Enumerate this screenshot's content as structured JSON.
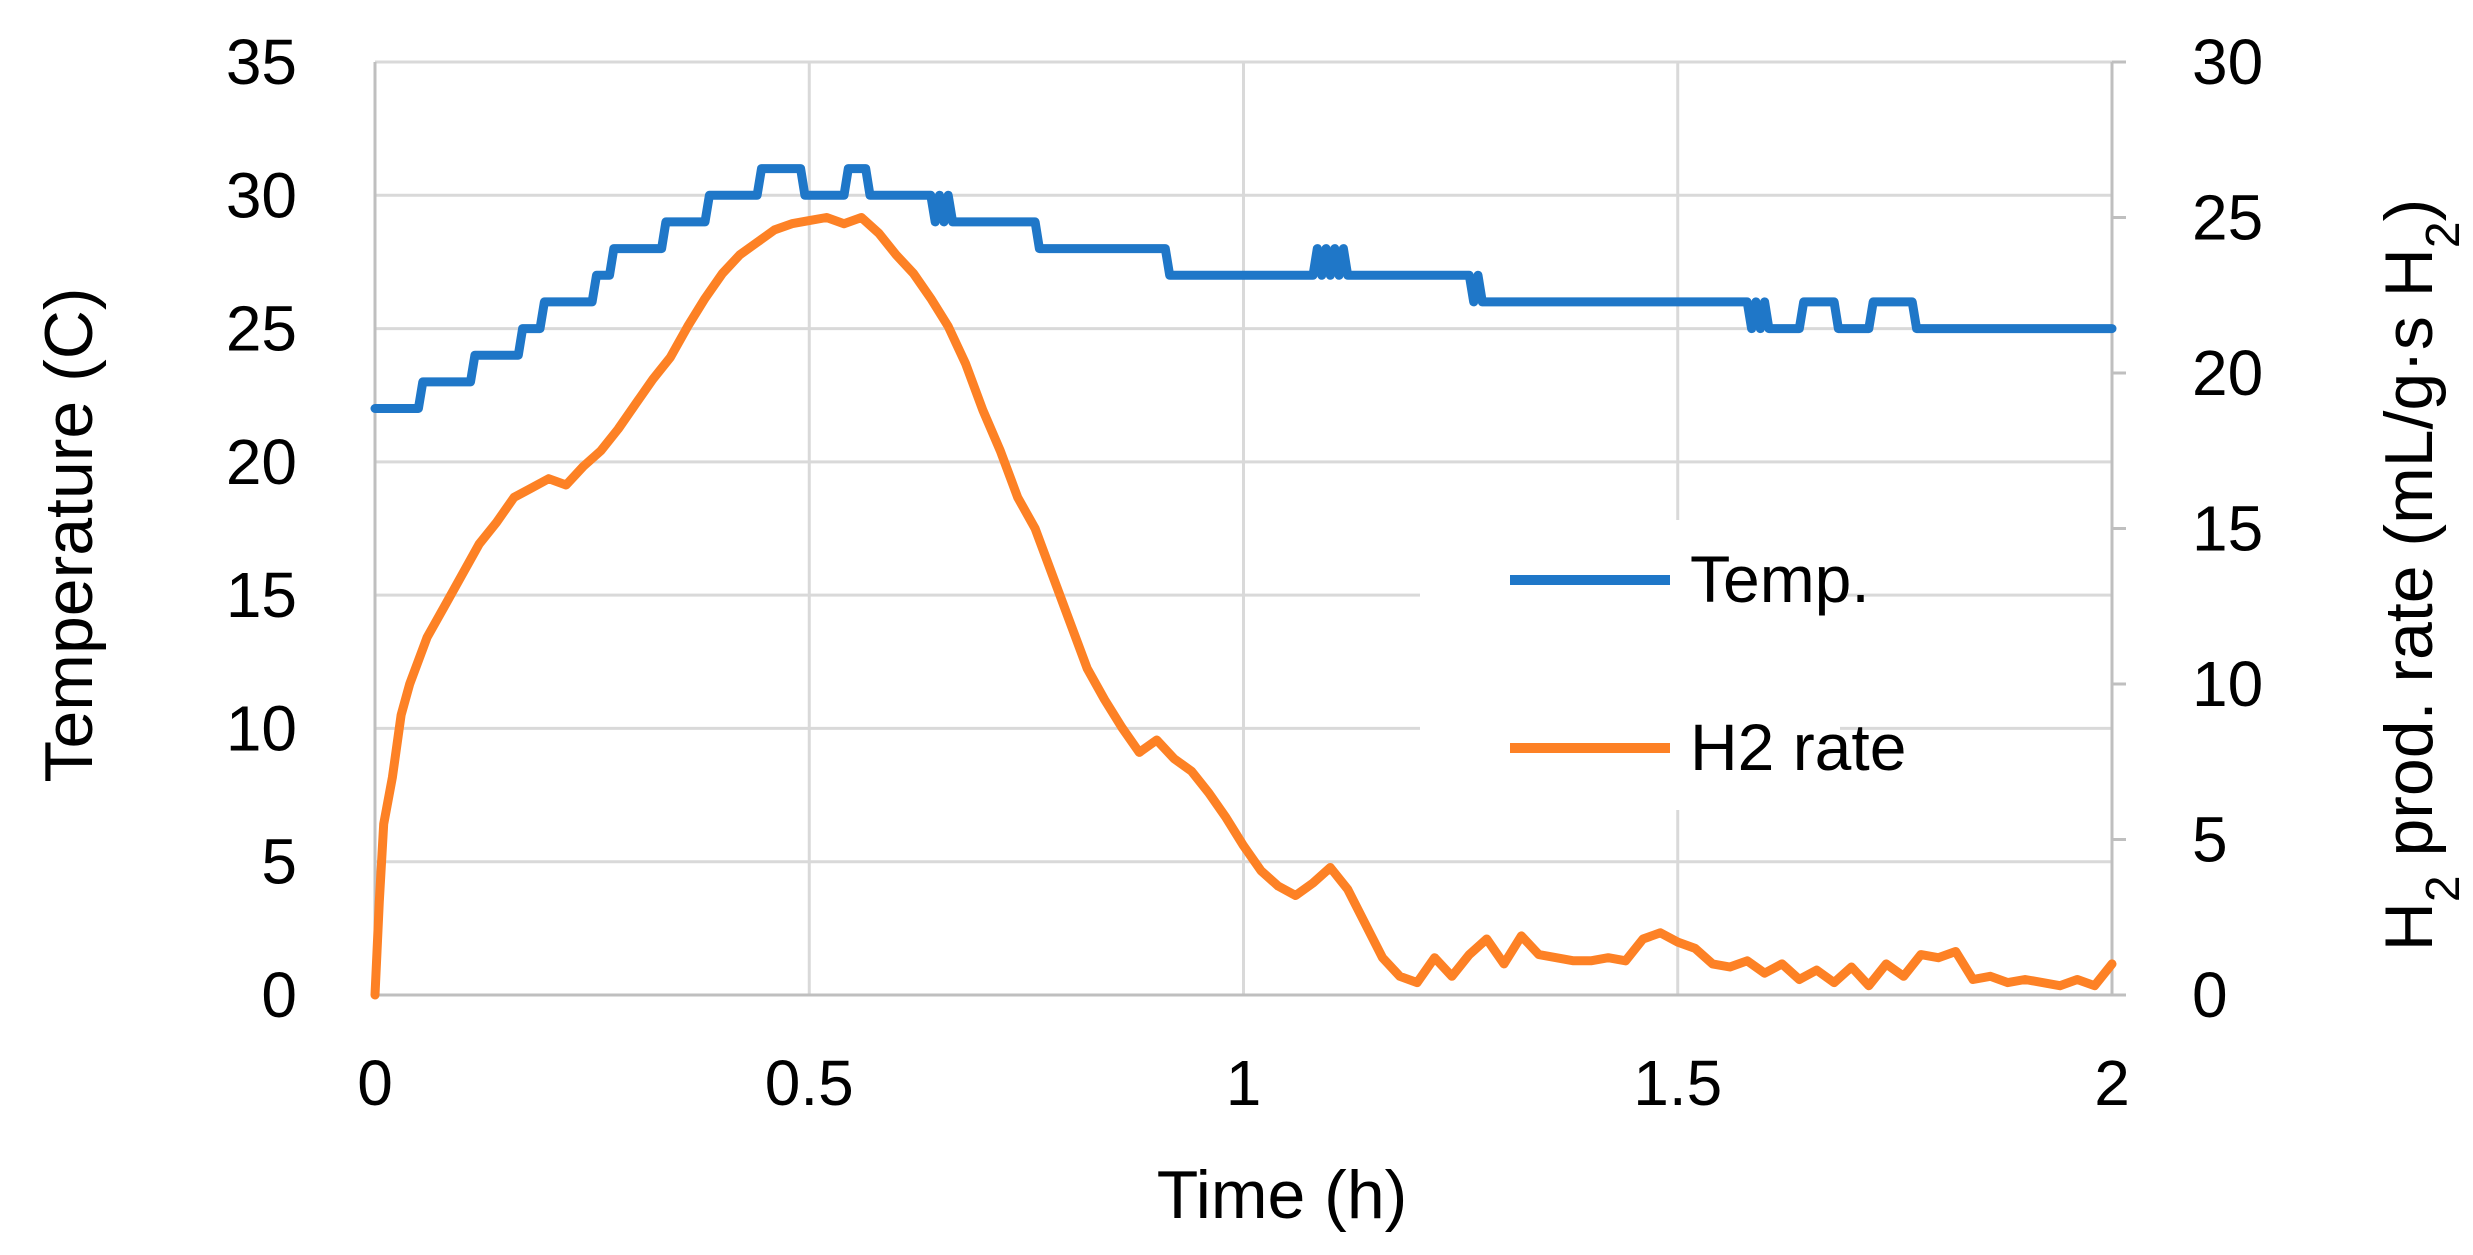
{
  "chart_data": {
    "type": "line",
    "xlabel": "Time (h)",
    "ylabel_left": "Temperature (C)",
    "ylabel_right": {
      "main": "H",
      "sub": "2",
      "mid": " prod. rate (mL/g·s H",
      "sub2": "2",
      "end": ")"
    },
    "xlim": [
      0,
      2
    ],
    "ylim_left": [
      0,
      35
    ],
    "ylim_right": [
      0,
      30
    ],
    "x_ticks": [
      "0",
      "0.5",
      "1",
      "1.5",
      "2"
    ],
    "y_left_ticks": [
      "0",
      "5",
      "10",
      "15",
      "20",
      "25",
      "30",
      "35"
    ],
    "y_right_ticks": [
      "0",
      "5",
      "10",
      "15",
      "20",
      "25",
      "30"
    ],
    "grid": true,
    "legend_position": "center-right",
    "series": [
      {
        "name": "Temp.",
        "axis": "left",
        "color": "#1f77c8",
        "x": [
          0,
          0.05,
          0.055,
          0.11,
          0.115,
          0.165,
          0.17,
          0.19,
          0.195,
          0.215,
          0.22,
          0.25,
          0.255,
          0.27,
          0.275,
          0.295,
          0.3,
          0.33,
          0.335,
          0.38,
          0.385,
          0.44,
          0.445,
          0.49,
          0.495,
          0.54,
          0.545,
          0.565,
          0.57,
          0.64,
          0.645,
          0.65,
          0.655,
          0.66,
          0.665,
          0.67,
          0.675,
          0.76,
          0.765,
          0.91,
          0.915,
          1.08,
          1.085,
          1.09,
          1.095,
          1.1,
          1.105,
          1.11,
          1.115,
          1.12,
          1.125,
          1.26,
          1.265,
          1.27,
          1.275,
          1.58,
          1.585,
          1.59,
          1.595,
          1.6,
          1.605,
          1.64,
          1.645,
          1.68,
          1.685,
          1.72,
          1.725,
          1.77,
          1.775,
          2.0
        ],
        "y": [
          22,
          22,
          23,
          23,
          24,
          24,
          25,
          25,
          26,
          26,
          26,
          26,
          27,
          27,
          28,
          28,
          28,
          28,
          29,
          29,
          30,
          30,
          31,
          31,
          30,
          30,
          31,
          31,
          30,
          30,
          29,
          30,
          29,
          30,
          29,
          29,
          29,
          29,
          28,
          28,
          27,
          27,
          28,
          27,
          28,
          27,
          28,
          27,
          28,
          27,
          27,
          27,
          26,
          27,
          26,
          26,
          25,
          26,
          25,
          26,
          25,
          25,
          26,
          26,
          25,
          25,
          26,
          26,
          25,
          25
        ]
      },
      {
        "name": "H2 rate",
        "axis": "right",
        "color": "#fd8125",
        "x": [
          0,
          0.005,
          0.01,
          0.02,
          0.03,
          0.04,
          0.06,
          0.08,
          0.1,
          0.12,
          0.14,
          0.16,
          0.18,
          0.2,
          0.22,
          0.24,
          0.26,
          0.28,
          0.3,
          0.32,
          0.34,
          0.36,
          0.38,
          0.4,
          0.42,
          0.44,
          0.46,
          0.48,
          0.5,
          0.52,
          0.54,
          0.56,
          0.58,
          0.6,
          0.62,
          0.64,
          0.66,
          0.68,
          0.7,
          0.72,
          0.74,
          0.76,
          0.78,
          0.8,
          0.82,
          0.84,
          0.86,
          0.88,
          0.9,
          0.92,
          0.94,
          0.96,
          0.98,
          1.0,
          1.02,
          1.04,
          1.06,
          1.08,
          1.1,
          1.12,
          1.14,
          1.16,
          1.18,
          1.2,
          1.22,
          1.24,
          1.26,
          1.28,
          1.3,
          1.32,
          1.34,
          1.36,
          1.38,
          1.4,
          1.42,
          1.44,
          1.46,
          1.48,
          1.5,
          1.52,
          1.54,
          1.56,
          1.58,
          1.6,
          1.62,
          1.64,
          1.66,
          1.68,
          1.7,
          1.72,
          1.74,
          1.76,
          1.78,
          1.8,
          1.82,
          1.84,
          1.86,
          1.88,
          1.9,
          1.92,
          1.94,
          1.96,
          1.98,
          2.0
        ],
        "y": [
          0,
          3,
          5.5,
          7,
          9,
          10,
          11.5,
          12.5,
          13.5,
          14.5,
          15.2,
          16,
          16.3,
          16.6,
          16.4,
          17,
          17.5,
          18.2,
          19,
          19.8,
          20.5,
          21.5,
          22.4,
          23.2,
          23.8,
          24.2,
          24.6,
          24.8,
          24.9,
          25,
          24.8,
          25,
          24.5,
          23.8,
          23.2,
          22.4,
          21.5,
          20.3,
          18.8,
          17.5,
          16,
          15,
          13.5,
          12,
          10.5,
          9.5,
          8.6,
          7.8,
          8.2,
          7.6,
          7.2,
          6.5,
          5.7,
          4.8,
          4.0,
          3.5,
          3.2,
          3.6,
          4.1,
          3.4,
          2.3,
          1.2,
          0.6,
          0.4,
          1.2,
          0.6,
          1.3,
          1.8,
          1.0,
          1.9,
          1.3,
          1.2,
          1.1,
          1.1,
          1.2,
          1.1,
          1.8,
          2.0,
          1.7,
          1.5,
          1.0,
          0.9,
          1.1,
          0.7,
          1.0,
          0.5,
          0.8,
          0.4,
          0.9,
          0.3,
          1.0,
          0.6,
          1.3,
          1.2,
          1.4,
          0.5,
          0.6,
          0.4,
          0.5,
          0.4,
          0.3,
          0.5,
          0.3,
          1.0
        ]
      }
    ]
  }
}
